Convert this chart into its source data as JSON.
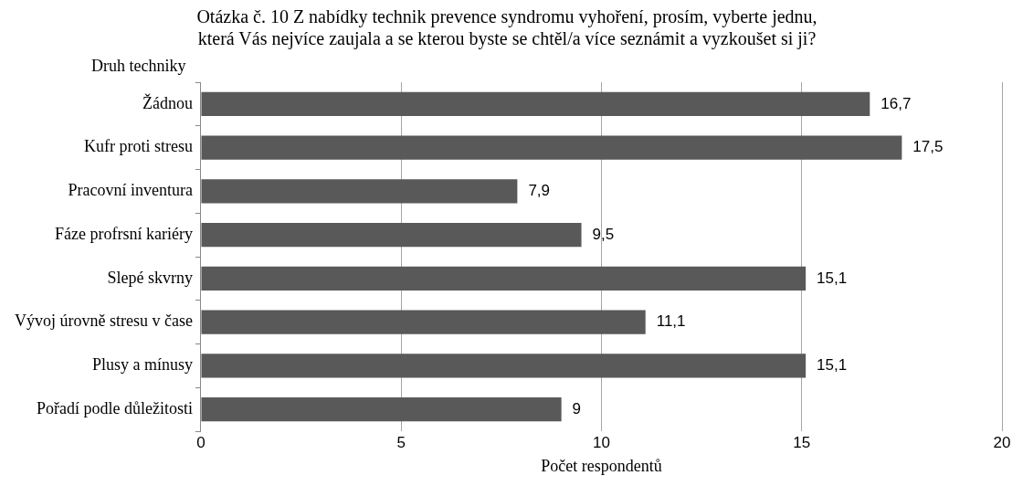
{
  "chart_data": {
    "type": "bar",
    "orientation": "horizontal",
    "title": [
      "Otázka č. 10 Z nabídky technik prevence syndromu vyhoření, prosím, vyberte jednu,",
      "která Vás nejvíce zaujala a se kterou byste se chtěl/a více seznámit a vyzkoušet si ji?"
    ],
    "ylabel": "Druh techniky",
    "xlabel": "Počet respondentů",
    "categories": [
      "Žádnou",
      "Kufr proti stresu",
      "Pracovní inventura",
      "Fáze profrsní kariéry",
      "Slepé skvrny",
      "Vývoj úrovně stresu v čase",
      "Plusy a mínusy",
      "Pořadí podle důležitosti"
    ],
    "values": [
      16.7,
      17.5,
      7.9,
      9.5,
      15.1,
      11.1,
      15.1,
      9
    ],
    "value_labels": [
      "16,7",
      "17,5",
      "7,9",
      "9,5",
      "15,1",
      "11,1",
      "15,1",
      "9"
    ],
    "color": "#595959",
    "xlim": [
      0,
      20
    ],
    "xticks": [
      0,
      5,
      10,
      15,
      20
    ],
    "grid": "x",
    "legend": false
  }
}
